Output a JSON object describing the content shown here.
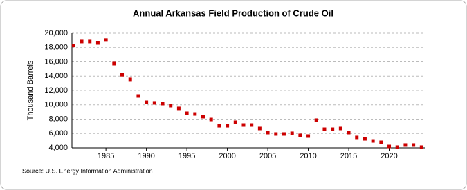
{
  "chart_data": {
    "type": "scatter",
    "title": "Annual Arkansas Field Production of Crude Oil",
    "y_label": "Thousand Barrels",
    "source": "Source: U.S. Energy Information Administration",
    "color": "#cc0000",
    "grid": true,
    "x": [
      1981,
      1982,
      1983,
      1984,
      1985,
      1986,
      1987,
      1988,
      1989,
      1990,
      1991,
      1992,
      1993,
      1994,
      1995,
      1996,
      1997,
      1998,
      1999,
      2000,
      2001,
      2002,
      2003,
      2004,
      2005,
      2006,
      2007,
      2008,
      2009,
      2010,
      2011,
      2012,
      2013,
      2014,
      2015,
      2016,
      2017,
      2018,
      2019,
      2020,
      2021,
      2022,
      2023,
      2024
    ],
    "values": [
      18300,
      18850,
      18850,
      18650,
      19050,
      15760,
      14200,
      13550,
      11230,
      10360,
      10270,
      10170,
      9880,
      9500,
      8820,
      8720,
      8340,
      7950,
      7080,
      7080,
      7570,
      7180,
      7180,
      6700,
      6120,
      5930,
      5930,
      6030,
      5740,
      5640,
      7860,
      6600,
      6600,
      6700,
      6120,
      5450,
      5250,
      4960,
      4770,
      4190,
      4100,
      4390,
      4390,
      4100
    ],
    "xlim": [
      1980.8,
      2024.4
    ],
    "xticks": [
      1985,
      1990,
      1995,
      2000,
      2005,
      2010,
      2015,
      2020
    ],
    "ylim": [
      4000,
      20000
    ],
    "yticks": [
      {
        "value": 4000,
        "label": "4,000"
      },
      {
        "value": 6000,
        "label": "6,000"
      },
      {
        "value": 8000,
        "label": "8,000"
      },
      {
        "value": 10000,
        "label": "10,000"
      },
      {
        "value": 12000,
        "label": "12,000"
      },
      {
        "value": 14000,
        "label": "14,000"
      },
      {
        "value": 16000,
        "label": "16,000"
      },
      {
        "value": 18000,
        "label": "18,000"
      },
      {
        "value": 20000,
        "label": "20,000"
      }
    ]
  }
}
